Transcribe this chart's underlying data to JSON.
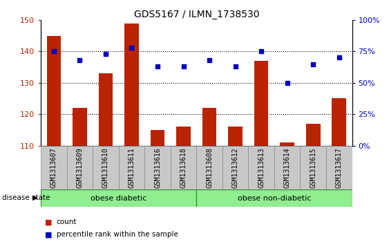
{
  "title": "GDS5167 / ILMN_1738530",
  "samples": [
    "GSM1313607",
    "GSM1313609",
    "GSM1313610",
    "GSM1313611",
    "GSM1313616",
    "GSM1313618",
    "GSM1313608",
    "GSM1313612",
    "GSM1313613",
    "GSM1313614",
    "GSM1313615",
    "GSM1313617"
  ],
  "counts": [
    145,
    122,
    133,
    149,
    115,
    116,
    122,
    116,
    137,
    111,
    117,
    125
  ],
  "percentiles": [
    75,
    68,
    73,
    78,
    63,
    63,
    68,
    63,
    75,
    50,
    65,
    70
  ],
  "ylim_left": [
    110,
    150
  ],
  "ylim_right": [
    0,
    100
  ],
  "yticks_left": [
    110,
    120,
    130,
    140,
    150
  ],
  "yticks_right": [
    0,
    25,
    50,
    75,
    100
  ],
  "bar_color": "#bb2200",
  "dot_color": "#0000bb",
  "grid_color": "#000000",
  "tick_label_bg": "#c8c8c8",
  "group1_label": "obese diabetic",
  "group2_label": "obese non-diabetic",
  "group1_indices": [
    0,
    1,
    2,
    3,
    4,
    5
  ],
  "group2_indices": [
    6,
    7,
    8,
    9,
    10,
    11
  ],
  "group_bg_color": "#90ee90",
  "group_border_color": "#228822",
  "disease_state_label": "disease state",
  "legend_count_label": "count",
  "legend_percentile_label": "percentile rank within the sample",
  "title_fontsize": 10,
  "tick_fontsize": 8,
  "label_fontsize": 7,
  "group_fontsize": 8
}
